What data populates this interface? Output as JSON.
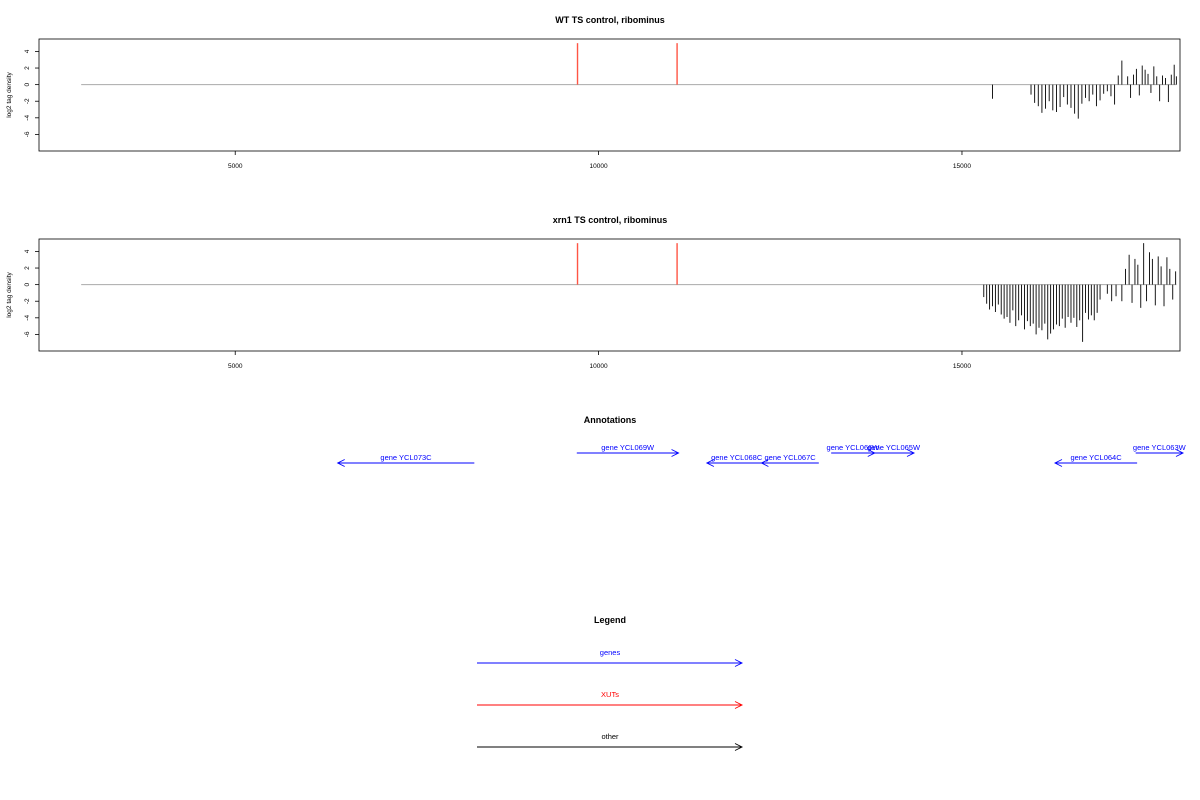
{
  "chart_data": [
    {
      "type": "bar",
      "title": "WT TS control, ribominus",
      "xlabel": "",
      "ylabel": "log2 tag density",
      "xlim": [
        2300,
        18000
      ],
      "ylim": [
        -8,
        5.5
      ],
      "xticks": [
        5000,
        10000,
        15000
      ],
      "yticks": [
        4,
        2,
        0,
        -2,
        -4,
        -6
      ],
      "baseline": {
        "x": [
          2880,
          17950
        ],
        "y": 0,
        "color": "#aaaaaa"
      },
      "xut_markers": {
        "x": [
          9710,
          11080
        ],
        "y": [
          0,
          5
        ],
        "color": "#ff5544"
      },
      "bars": {
        "color": "#000000",
        "x": [
          15420,
          15950,
          16000,
          16050,
          16100,
          16150,
          16200,
          16250,
          16300,
          16350,
          16400,
          16450,
          16500,
          16550,
          16600,
          16650,
          16700,
          16750,
          16800,
          16850,
          16900,
          16950,
          17000,
          17050,
          17100,
          17150,
          17200,
          17280,
          17320,
          17360,
          17400,
          17440,
          17480,
          17520,
          17560,
          17600,
          17640,
          17680,
          17720,
          17760,
          17800,
          17840,
          17880,
          17920,
          17950
        ],
        "y": [
          -1.7,
          -1.2,
          -2.2,
          -2.6,
          -3.4,
          -2.9,
          -2.0,
          -3.1,
          -3.3,
          -2.7,
          -1.5,
          -2.4,
          -2.8,
          -3.5,
          -4.1,
          -2.3,
          -1.6,
          -2.0,
          -1.2,
          -2.6,
          -1.9,
          -1.1,
          -0.8,
          -1.4,
          -2.4,
          1.1,
          2.9,
          1.0,
          -1.6,
          1.2,
          1.9,
          -1.3,
          2.3,
          1.8,
          1.3,
          -1.0,
          2.2,
          1.0,
          -2.0,
          1.1,
          0.8,
          -2.1,
          1.2,
          2.4,
          1.0
        ]
      }
    },
    {
      "type": "bar",
      "title": "xrn1 TS control, ribominus",
      "xlabel": "",
      "ylabel": "log2 tag density",
      "xlim": [
        2300,
        18000
      ],
      "ylim": [
        -8,
        5.5
      ],
      "xticks": [
        5000,
        10000,
        15000
      ],
      "yticks": [
        4,
        2,
        0,
        -2,
        -4,
        -6
      ],
      "baseline": {
        "x": [
          2880,
          17950
        ],
        "y": 0,
        "color": "#aaaaaa"
      },
      "xut_markers": {
        "x": [
          9710,
          11080
        ],
        "y": [
          0,
          5
        ],
        "color": "#ff5544"
      },
      "bars": {
        "color": "#000000",
        "x": [
          15300,
          15340,
          15380,
          15420,
          15460,
          15500,
          15540,
          15580,
          15620,
          15660,
          15700,
          15740,
          15780,
          15820,
          15860,
          15900,
          15940,
          15980,
          16020,
          16060,
          16100,
          16140,
          16180,
          16220,
          16260,
          16300,
          16340,
          16380,
          16420,
          16460,
          16500,
          16540,
          16580,
          16620,
          16660,
          16700,
          16740,
          16780,
          16820,
          16860,
          16900,
          17000,
          17060,
          17120,
          17200,
          17250,
          17300,
          17340,
          17380,
          17420,
          17460,
          17500,
          17540,
          17580,
          17620,
          17660,
          17700,
          17740,
          17780,
          17820,
          17860,
          17900,
          17940
        ],
        "y": [
          -1.5,
          -2.3,
          -3.0,
          -2.6,
          -3.3,
          -2.4,
          -3.6,
          -4.1,
          -3.9,
          -4.6,
          -3.1,
          -5.0,
          -4.3,
          -3.7,
          -5.4,
          -4.4,
          -5.0,
          -4.7,
          -6.0,
          -5.2,
          -5.5,
          -4.7,
          -6.6,
          -5.9,
          -5.4,
          -4.8,
          -5.0,
          -4.1,
          -5.2,
          -3.9,
          -4.6,
          -4.0,
          -5.1,
          -4.3,
          -6.9,
          -3.4,
          -4.2,
          -3.7,
          -4.3,
          -3.4,
          -1.8,
          -1.1,
          -2.0,
          -1.4,
          -2.0,
          1.9,
          3.6,
          -2.2,
          3.1,
          2.4,
          -2.8,
          5.0,
          -2.0,
          3.9,
          3.1,
          -2.5,
          3.4,
          2.2,
          -2.6,
          3.3,
          1.9,
          -1.8,
          1.6
        ]
      }
    }
  ],
  "annotations": {
    "title": "Annotations",
    "color_genes": "#0000ff",
    "genes": [
      {
        "label": "gene YCL073C",
        "strand": "-",
        "row": 1,
        "start": 6410,
        "end": 8290
      },
      {
        "label": "gene YCL069W",
        "strand": "+",
        "row": 0,
        "start": 9700,
        "end": 11100
      },
      {
        "label": "gene YCL068C",
        "strand": "-",
        "row": 1,
        "start": 11490,
        "end": 12310
      },
      {
        "label": "gene YCL067C",
        "strand": "-",
        "row": 1,
        "start": 12240,
        "end": 13030
      },
      {
        "label": "gene YCL066W",
        "strand": "+",
        "row": 0,
        "start": 13200,
        "end": 13800
      },
      {
        "label": "gene YCL065W",
        "strand": "+",
        "row": 0,
        "start": 13780,
        "end": 14340
      },
      {
        "label": "gene YCL064C",
        "strand": "-",
        "row": 1,
        "start": 16280,
        "end": 17410
      },
      {
        "label": "gene YCL063W",
        "strand": "+",
        "row": 0,
        "start": 17390,
        "end": 18640
      }
    ]
  },
  "legend": {
    "title": "Legend",
    "items": [
      {
        "label": "genes",
        "color": "#0000ff"
      },
      {
        "label": "XUTs",
        "color": "#ff0000"
      },
      {
        "label": "other",
        "color": "#000000"
      }
    ]
  }
}
